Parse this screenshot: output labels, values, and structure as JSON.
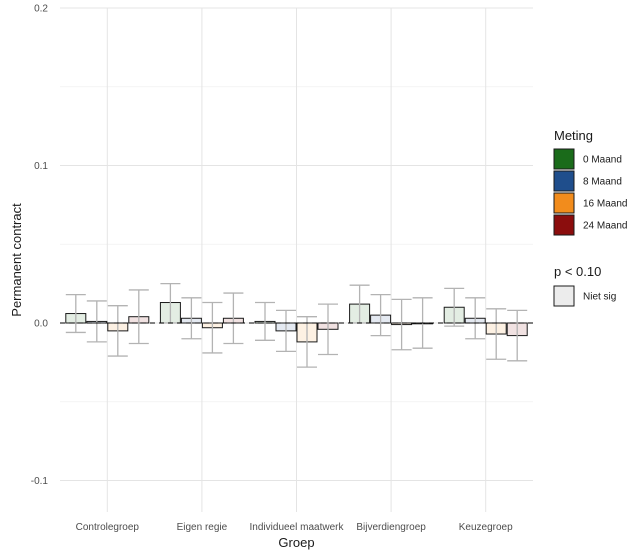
{
  "chart_data": {
    "type": "bar",
    "xlabel": "Groep",
    "ylabel": "Permanent contract",
    "ylim": [
      -0.12,
      0.2
    ],
    "yticks": [
      "-0.1",
      "0.0",
      "0.1",
      "0.2"
    ],
    "ytick_values": [
      -0.1,
      0.0,
      0.1,
      0.2
    ],
    "grid": true,
    "zero_line": "dashed",
    "categories": [
      "Controlegroep",
      "Eigen regie",
      "Individueel maatwerk",
      "Bijverdiengroep",
      "Keuzegroep"
    ],
    "series": [
      {
        "name": "0 Maand",
        "color": "#1a6b1a",
        "values": [
          0.006,
          0.013,
          0.001,
          0.012,
          0.01
        ],
        "lower": [
          -0.006,
          0.0,
          -0.011,
          0.0,
          -0.002
        ],
        "upper": [
          0.018,
          0.025,
          0.013,
          0.024,
          0.022
        ]
      },
      {
        "name": "8 Maand",
        "color": "#1f4e8c",
        "values": [
          0.001,
          0.003,
          -0.005,
          0.005,
          0.003
        ],
        "lower": [
          -0.012,
          -0.01,
          -0.018,
          -0.008,
          -0.01
        ],
        "upper": [
          0.014,
          0.016,
          0.008,
          0.018,
          0.016
        ]
      },
      {
        "name": "16 Maand",
        "color": "#f28c1c",
        "values": [
          -0.005,
          -0.003,
          -0.012,
          -0.001,
          -0.007
        ],
        "lower": [
          -0.021,
          -0.019,
          -0.028,
          -0.017,
          -0.023
        ],
        "upper": [
          0.011,
          0.013,
          0.004,
          0.015,
          0.009
        ]
      },
      {
        "name": "24 Maand",
        "color": "#8b0d0d",
        "values": [
          0.004,
          0.003,
          -0.004,
          0.0,
          -0.008
        ],
        "lower": [
          -0.013,
          -0.013,
          -0.02,
          -0.016,
          -0.024
        ],
        "upper": [
          0.021,
          0.019,
          0.012,
          0.016,
          0.008
        ]
      }
    ],
    "legend": {
      "position": "right",
      "title": "Meting",
      "items": [
        "0 Maand",
        "8 Maand",
        "16 Maand",
        "24 Maand"
      ],
      "sig_title": "p < 0.10",
      "sig_items": [
        "Niet sig"
      ],
      "sig_color": "#ececec"
    }
  }
}
